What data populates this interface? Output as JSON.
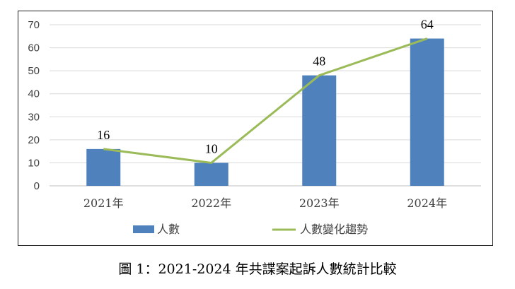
{
  "chart_data": {
    "type": "bar",
    "categories": [
      "2021年",
      "2022年",
      "2023年",
      "2024年"
    ],
    "series": [
      {
        "name": "人數",
        "type": "bar",
        "color": "#4f81bd",
        "values": [
          16,
          10,
          48,
          64
        ]
      },
      {
        "name": "人數變化趨勢",
        "type": "line",
        "color": "#9bbb59",
        "values": [
          16,
          10,
          48,
          64
        ]
      }
    ],
    "data_labels": [
      "16",
      "10",
      "48",
      "64"
    ],
    "y_ticks": [
      "0",
      "10",
      "20",
      "30",
      "40",
      "50",
      "60",
      "70"
    ],
    "ylim": [
      0,
      70
    ],
    "grid": true,
    "legend_position": "bottom",
    "title": "",
    "xlabel": "",
    "ylabel": ""
  },
  "caption": "圖 1：2021-2024 年共諜案起訴人數統計比較"
}
